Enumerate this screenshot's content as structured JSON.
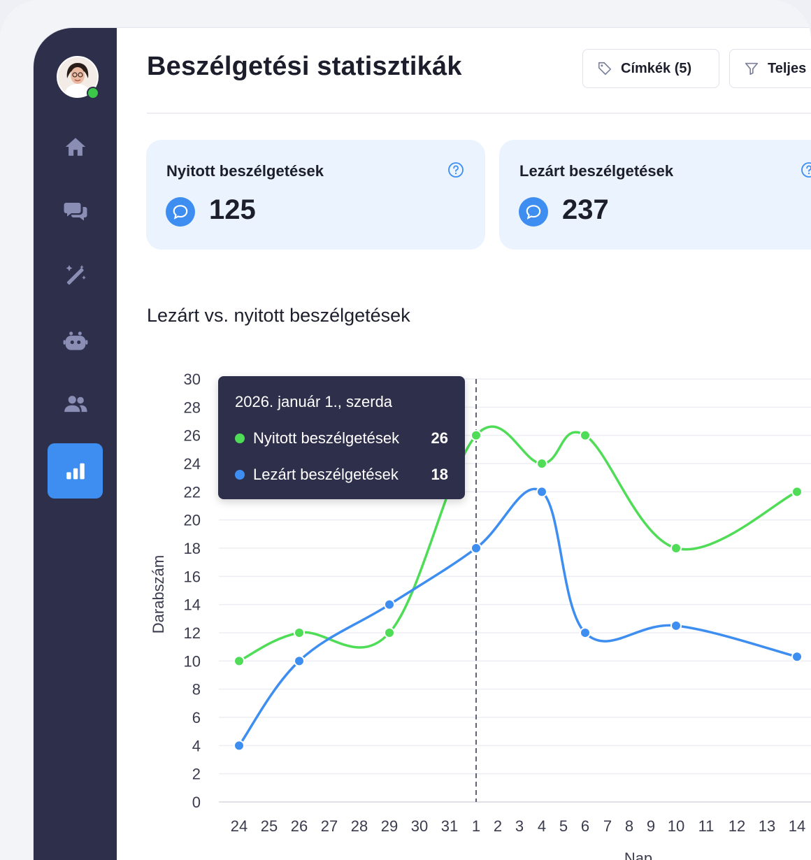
{
  "header": {
    "title": "Beszélgetési statisztikák",
    "tags_button": "Címkék (5)",
    "filter_button": "Teljes"
  },
  "sidebar": {
    "items": [
      {
        "icon": "home-icon"
      },
      {
        "icon": "chat-icon"
      },
      {
        "icon": "magic-wand-icon"
      },
      {
        "icon": "bot-icon"
      },
      {
        "icon": "users-icon"
      },
      {
        "icon": "bar-chart-icon",
        "active": true
      }
    ],
    "status_color": "#3bc84a"
  },
  "cards": [
    {
      "title": "Nyitott beszélgetések",
      "value": "125"
    },
    {
      "title": "Lezárt beszélgetések",
      "value": "237"
    }
  ],
  "chart_title": "Lezárt vs. nyitott beszélgetések",
  "tooltip": {
    "date": "2026. január 1., szerda",
    "rows": [
      {
        "label": "Nyitott beszélgetések",
        "value": "26",
        "color": "#4fdc56"
      },
      {
        "label": "Lezárt beszélgetések",
        "value": "18",
        "color": "#3d8ef0"
      }
    ]
  },
  "chart_data": {
    "type": "line",
    "ylabel": "Darabszám",
    "xlabel": "Nap",
    "ylim": [
      0,
      30
    ],
    "yticks": [
      0,
      2,
      4,
      6,
      8,
      10,
      12,
      14,
      16,
      18,
      20,
      22,
      24,
      26,
      28,
      30
    ],
    "x": [
      "24",
      "25",
      "26",
      "27",
      "28",
      "29",
      "30",
      "31",
      "1",
      "2",
      "3",
      "4",
      "5",
      "6",
      "7",
      "8",
      "9",
      "10",
      "11",
      "12",
      "13",
      "14"
    ],
    "highlight_x": "1",
    "series": [
      {
        "name": "Nyitott beszélgetések",
        "color": "#4fdc56",
        "points": [
          [
            "24",
            10
          ],
          [
            "26",
            12
          ],
          [
            "29",
            12
          ],
          [
            "1",
            26
          ],
          [
            "4",
            24
          ],
          [
            "6",
            26
          ],
          [
            "10",
            18
          ],
          [
            "14",
            22
          ]
        ]
      },
      {
        "name": "Lezárt beszélgetések",
        "color": "#3d8ef0",
        "points": [
          [
            "24",
            4
          ],
          [
            "26",
            10
          ],
          [
            "29",
            14
          ],
          [
            "1",
            18
          ],
          [
            "4",
            22
          ],
          [
            "6",
            12
          ],
          [
            "10",
            12.5
          ],
          [
            "14",
            10.3
          ]
        ]
      }
    ]
  }
}
